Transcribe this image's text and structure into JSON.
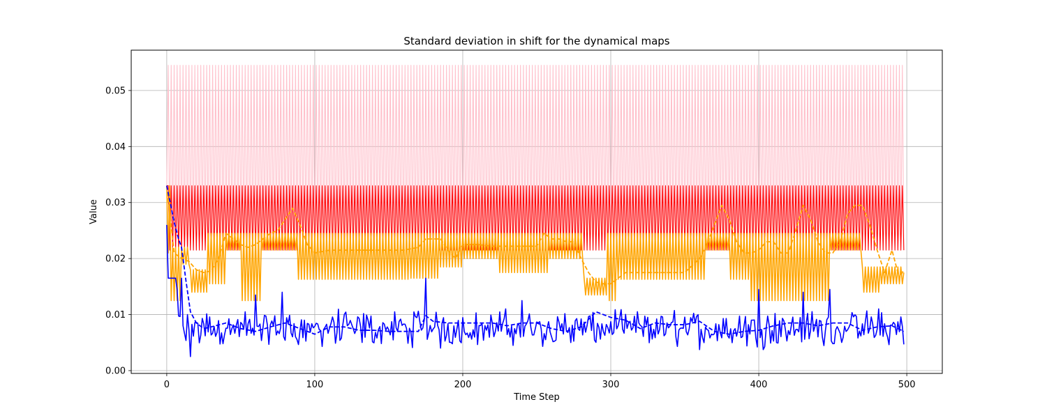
{
  "chart_data": {
    "type": "line",
    "title": "Standard deviation in shift for the dynamical maps",
    "xlabel": "Time Step",
    "ylabel": "Value",
    "xlim": [
      -24,
      524
    ],
    "ylim": [
      -0.0005,
      0.0572
    ],
    "x_ticks": [
      0,
      100,
      200,
      300,
      400,
      500
    ],
    "y_ticks": [
      0.0,
      0.01,
      0.02,
      0.03,
      0.04,
      0.05
    ],
    "x_tick_labels": [
      "0",
      "100",
      "200",
      "300",
      "400",
      "500"
    ],
    "y_tick_labels": [
      "0.00",
      "0.01",
      "0.02",
      "0.03",
      "0.04",
      "0.05"
    ],
    "grid": true,
    "legend": "none",
    "x_range": [
      0,
      498
    ],
    "series": [
      {
        "color": "#ffc0cb",
        "style": "solid",
        "kind": "alternating",
        "period": 2,
        "high": 0.0545,
        "low": 0.0215,
        "start_value": 0.033
      },
      {
        "color": "#ff0000",
        "style": "solid",
        "kind": "alternating",
        "period": 2,
        "high": 0.033,
        "low": 0.0215,
        "start_value": 0.033
      },
      {
        "color": "#ffa500",
        "style": "solid",
        "kind": "segments",
        "note_levels": "oscillating blocks between two levels",
        "segments": [
          {
            "x0": 0,
            "x1": 3,
            "lo": 0.021,
            "hi": 0.033
          },
          {
            "x0": 3,
            "x1": 10,
            "lo": 0.0125,
            "hi": 0.022
          },
          {
            "x0": 10,
            "x1": 16,
            "lo": 0.019,
            "hi": 0.022
          },
          {
            "x0": 16,
            "x1": 28,
            "lo": 0.014,
            "hi": 0.018
          },
          {
            "x0": 28,
            "x1": 40,
            "lo": 0.0155,
            "hi": 0.0245
          },
          {
            "x0": 40,
            "x1": 50,
            "lo": 0.0215,
            "hi": 0.0245
          },
          {
            "x0": 50,
            "x1": 65,
            "lo": 0.0125,
            "hi": 0.0245
          },
          {
            "x0": 65,
            "x1": 88,
            "lo": 0.0215,
            "hi": 0.0245
          },
          {
            "x0": 88,
            "x1": 165,
            "lo": 0.0163,
            "hi": 0.0245
          },
          {
            "x0": 165,
            "x1": 185,
            "lo": 0.0165,
            "hi": 0.0245
          },
          {
            "x0": 185,
            "x1": 200,
            "lo": 0.0185,
            "hi": 0.0245
          },
          {
            "x0": 200,
            "x1": 225,
            "lo": 0.02,
            "hi": 0.0245
          },
          {
            "x0": 225,
            "x1": 258,
            "lo": 0.0175,
            "hi": 0.0245
          },
          {
            "x0": 258,
            "x1": 282,
            "lo": 0.02,
            "hi": 0.0245
          },
          {
            "x0": 282,
            "x1": 298,
            "lo": 0.0135,
            "hi": 0.0165
          },
          {
            "x0": 298,
            "x1": 305,
            "lo": 0.0125,
            "hi": 0.0245
          },
          {
            "x0": 305,
            "x1": 365,
            "lo": 0.0163,
            "hi": 0.0245
          },
          {
            "x0": 365,
            "x1": 380,
            "lo": 0.0215,
            "hi": 0.0245
          },
          {
            "x0": 380,
            "x1": 395,
            "lo": 0.0163,
            "hi": 0.0245
          },
          {
            "x0": 395,
            "x1": 420,
            "lo": 0.0125,
            "hi": 0.0245
          },
          {
            "x0": 420,
            "x1": 448,
            "lo": 0.0125,
            "hi": 0.0245
          },
          {
            "x0": 448,
            "x1": 470,
            "lo": 0.0215,
            "hi": 0.0245
          },
          {
            "x0": 470,
            "x1": 482,
            "lo": 0.014,
            "hi": 0.0185
          },
          {
            "x0": 482,
            "x1": 498,
            "lo": 0.0155,
            "hi": 0.0185
          }
        ]
      },
      {
        "color": "#ffa500",
        "style": "dashed",
        "kind": "smooth",
        "x": [
          0,
          5,
          10,
          15,
          20,
          25,
          30,
          35,
          40,
          45,
          50,
          55,
          60,
          65,
          70,
          75,
          80,
          85,
          90,
          95,
          100,
          110,
          120,
          130,
          140,
          150,
          160,
          170,
          175,
          180,
          185,
          190,
          195,
          200,
          210,
          220,
          230,
          240,
          250,
          255,
          260,
          265,
          270,
          275,
          280,
          285,
          290,
          295,
          300,
          305,
          310,
          320,
          330,
          340,
          350,
          360,
          365,
          370,
          375,
          380,
          385,
          390,
          395,
          400,
          405,
          410,
          415,
          420,
          425,
          430,
          435,
          440,
          445,
          450,
          455,
          460,
          465,
          470,
          475,
          480,
          485,
          490,
          495,
          498
        ],
        "y": [
          0.033,
          0.021,
          0.02,
          0.0195,
          0.018,
          0.0175,
          0.0178,
          0.02,
          0.0245,
          0.0235,
          0.0225,
          0.022,
          0.0225,
          0.0235,
          0.0245,
          0.025,
          0.027,
          0.029,
          0.026,
          0.0225,
          0.021,
          0.0215,
          0.0215,
          0.0215,
          0.0215,
          0.0215,
          0.0215,
          0.022,
          0.0235,
          0.0235,
          0.0235,
          0.0215,
          0.02,
          0.0225,
          0.0225,
          0.0222,
          0.0222,
          0.0222,
          0.0222,
          0.0245,
          0.0235,
          0.0235,
          0.023,
          0.023,
          0.02,
          0.0175,
          0.0158,
          0.0155,
          0.0155,
          0.0165,
          0.0175,
          0.0175,
          0.0175,
          0.0175,
          0.0175,
          0.02,
          0.0225,
          0.026,
          0.0295,
          0.027,
          0.023,
          0.021,
          0.021,
          0.0215,
          0.023,
          0.023,
          0.021,
          0.021,
          0.025,
          0.0295,
          0.027,
          0.023,
          0.021,
          0.021,
          0.023,
          0.028,
          0.0295,
          0.0295,
          0.026,
          0.0215,
          0.0175,
          0.0215,
          0.0165,
          0.018
        ]
      },
      {
        "color": "#0000ff",
        "style": "solid",
        "kind": "noisy",
        "mean": 0.0075,
        "spread": 0.0038,
        "start_value": 0.026,
        "spikes": [
          [
            10,
            0.0223
          ],
          [
            16,
            0.0025
          ],
          [
            60,
            0.0135
          ],
          [
            78,
            0.014
          ],
          [
            175,
            0.0165
          ],
          [
            240,
            0.0125
          ],
          [
            400,
            0.0145
          ],
          [
            430,
            0.014
          ],
          [
            448,
            0.0145
          ]
        ]
      },
      {
        "color": "#0000ff",
        "style": "dashed",
        "kind": "smooth",
        "x": [
          0,
          5,
          8,
          10,
          13,
          16,
          20,
          25,
          30,
          40,
          50,
          60,
          70,
          80,
          90,
          100,
          110,
          120,
          130,
          140,
          150,
          160,
          170,
          175,
          180,
          190,
          200,
          210,
          220,
          230,
          240,
          250,
          260,
          270,
          280,
          290,
          300,
          310,
          320,
          330,
          340,
          350,
          360,
          370,
          380,
          390,
          400,
          410,
          420,
          430,
          440,
          450,
          460,
          470,
          480,
          490,
          498
        ],
        "y": [
          0.033,
          0.0265,
          0.0235,
          0.022,
          0.016,
          0.0105,
          0.0085,
          0.0075,
          0.0078,
          0.0085,
          0.0075,
          0.007,
          0.0078,
          0.0085,
          0.0075,
          0.0065,
          0.0078,
          0.0078,
          0.0072,
          0.0072,
          0.007,
          0.007,
          0.007,
          0.0098,
          0.0088,
          0.0085,
          0.0085,
          0.0085,
          0.0085,
          0.008,
          0.0085,
          0.0085,
          0.0075,
          0.007,
          0.0078,
          0.0105,
          0.0095,
          0.009,
          0.0075,
          0.0085,
          0.0082,
          0.0082,
          0.0088,
          0.007,
          0.0065,
          0.007,
          0.0072,
          0.008,
          0.0085,
          0.0085,
          0.008,
          0.0085,
          0.0085,
          0.0072,
          0.0078,
          0.008,
          0.007
        ]
      }
    ]
  }
}
